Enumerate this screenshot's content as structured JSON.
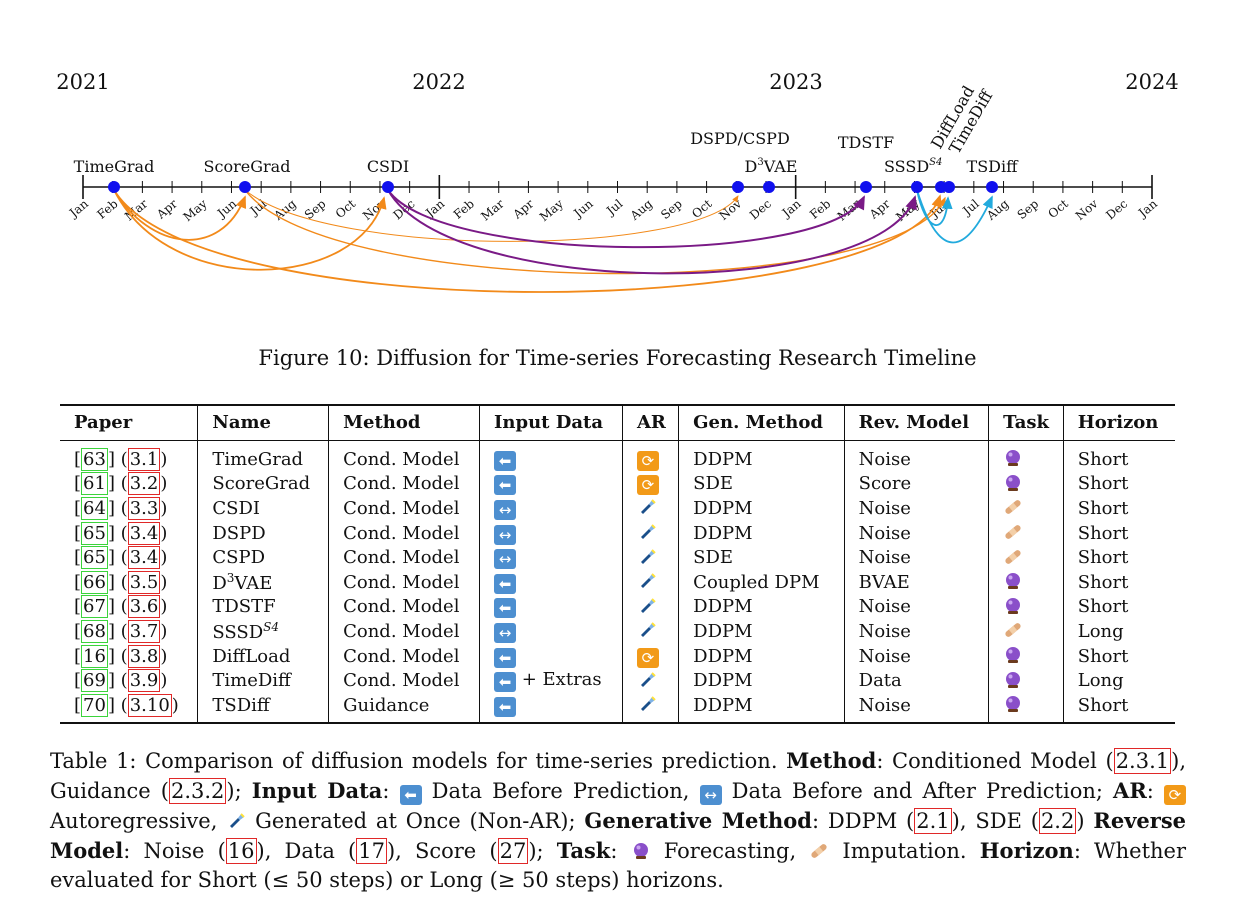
{
  "timeline": {
    "years": [
      "2021",
      "2022",
      "2023",
      "2024"
    ],
    "months": [
      "Jan",
      "Feb",
      "Mar",
      "Apr",
      "May",
      "Jun",
      "Jul",
      "Aug",
      "Sep",
      "Oct",
      "Nov",
      "Dec"
    ],
    "months_final": "Jan",
    "events": [
      {
        "label": "TimeGrad",
        "date": "2021-02"
      },
      {
        "label": "ScoreGrad",
        "date": "2021-06"
      },
      {
        "label": "CSDI",
        "date": "2021-11"
      },
      {
        "label": "DSPD/CSPD",
        "date": "2022-11"
      },
      {
        "label": "D3VAE",
        "date": "2022-12"
      },
      {
        "label": "TDSTF",
        "date": "2023-03"
      },
      {
        "label": "SSSD S4",
        "date": "2023-05"
      },
      {
        "label": "DiffLoad",
        "date": "2023-06"
      },
      {
        "label": "TimeDiff",
        "date": "2023-06"
      },
      {
        "label": "TSDiff",
        "date": "2023-07"
      }
    ],
    "arc_colors": {
      "orange": "#f28a1a",
      "purple": "#7a1a86",
      "blue": "#22aadd",
      "node": "#1010ee"
    }
  },
  "figure_caption": "Figure 10: Diffusion for Time-series Forecasting Research Timeline",
  "table": {
    "headers": [
      "Paper",
      "Name",
      "Method",
      "Input Data",
      "AR",
      "Gen. Method",
      "Rev. Model",
      "Task",
      "Horizon"
    ],
    "rows": [
      {
        "ref": "63",
        "sec": "3.1",
        "name": "TimeGrad",
        "method": "Cond. Model",
        "input": "before",
        "input_extra": "",
        "ar": "auto",
        "gen": "DDPM",
        "rev": "Noise",
        "task": "forecast",
        "horizon": "Short"
      },
      {
        "ref": "61",
        "sec": "3.2",
        "name": "ScoreGrad",
        "method": "Cond. Model",
        "input": "before",
        "input_extra": "",
        "ar": "auto",
        "gen": "SDE",
        "rev": "Score",
        "task": "forecast",
        "horizon": "Short"
      },
      {
        "ref": "64",
        "sec": "3.3",
        "name": "CSDI",
        "method": "Cond. Model",
        "input": "both",
        "input_extra": "",
        "ar": "once",
        "gen": "DDPM",
        "rev": "Noise",
        "task": "impute",
        "horizon": "Short"
      },
      {
        "ref": "65",
        "sec": "3.4",
        "name": "DSPD",
        "method": "Cond. Model",
        "input": "both",
        "input_extra": "",
        "ar": "once",
        "gen": "DDPM",
        "rev": "Noise",
        "task": "impute",
        "horizon": "Short"
      },
      {
        "ref": "65",
        "sec": "3.4",
        "name": "CSPD",
        "method": "Cond. Model",
        "input": "both",
        "input_extra": "",
        "ar": "once",
        "gen": "SDE",
        "rev": "Noise",
        "task": "impute",
        "horizon": "Short"
      },
      {
        "ref": "66",
        "sec": "3.5",
        "name": "D3VAE",
        "method": "Cond. Model",
        "input": "before",
        "input_extra": "",
        "ar": "once",
        "gen": "Coupled DPM",
        "rev": "BVAE",
        "task": "forecast",
        "horizon": "Short"
      },
      {
        "ref": "67",
        "sec": "3.6",
        "name": "TDSTF",
        "method": "Cond. Model",
        "input": "before",
        "input_extra": "",
        "ar": "once",
        "gen": "DDPM",
        "rev": "Noise",
        "task": "forecast",
        "horizon": "Short"
      },
      {
        "ref": "68",
        "sec": "3.7",
        "name": "SSSD S4",
        "method": "Cond. Model",
        "input": "both",
        "input_extra": "",
        "ar": "once",
        "gen": "DDPM",
        "rev": "Noise",
        "task": "impute",
        "horizon": "Long"
      },
      {
        "ref": "16",
        "sec": "3.8",
        "name": "DiffLoad",
        "method": "Cond. Model",
        "input": "before",
        "input_extra": "",
        "ar": "auto",
        "gen": "DDPM",
        "rev": "Noise",
        "task": "forecast",
        "horizon": "Short"
      },
      {
        "ref": "69",
        "sec": "3.9",
        "name": "TimeDiff",
        "method": "Cond. Model",
        "input": "before",
        "input_extra": "+ Extras",
        "ar": "once",
        "gen": "DDPM",
        "rev": "Data",
        "task": "forecast",
        "horizon": "Long"
      },
      {
        "ref": "70",
        "sec": "3.10",
        "name": "TSDiff",
        "method": "Guidance",
        "input": "before",
        "input_extra": "",
        "ar": "once",
        "gen": "DDPM",
        "rev": "Noise",
        "task": "forecast",
        "horizon": "Short"
      }
    ]
  },
  "caption": {
    "t1": "Table 1: Comparison of diffusion models for time-series prediction. ",
    "b_method": "Method",
    "t2": ": Conditioned Model (",
    "r1": "2.3.1",
    "t3": "), Guidance (",
    "r2": "2.3.2",
    "t4": "); ",
    "b_input": "Input Data",
    "t5": ": ",
    "t6": " Data Before Prediction, ",
    "t7": " Data Before and After Prediction; ",
    "b_ar": "AR",
    "t8": ": ",
    "t9": " Autoregressive, ",
    "t10": " Generated at Once (Non-AR); ",
    "b_gen": "Generative Method",
    "t11": ": DDPM (",
    "r3": "2.1",
    "t12": "), SDE (",
    "r4": "2.2",
    "t13": ") ",
    "b_rev": "Reverse Model",
    "t14": ": Noise (",
    "r5": "16",
    "t15": "), Data (",
    "r6": "17",
    "t16": "), Score (",
    "r7": "27",
    "t17": "); ",
    "b_task": "Task",
    "t18": ": ",
    "t19": " Forecasting, ",
    "t20": " Imputation. ",
    "b_hor": "Horizon",
    "t21": ": Whether evaluated for Short (≤ 50 steps) or Long (≥ 50 steps) horizons."
  }
}
